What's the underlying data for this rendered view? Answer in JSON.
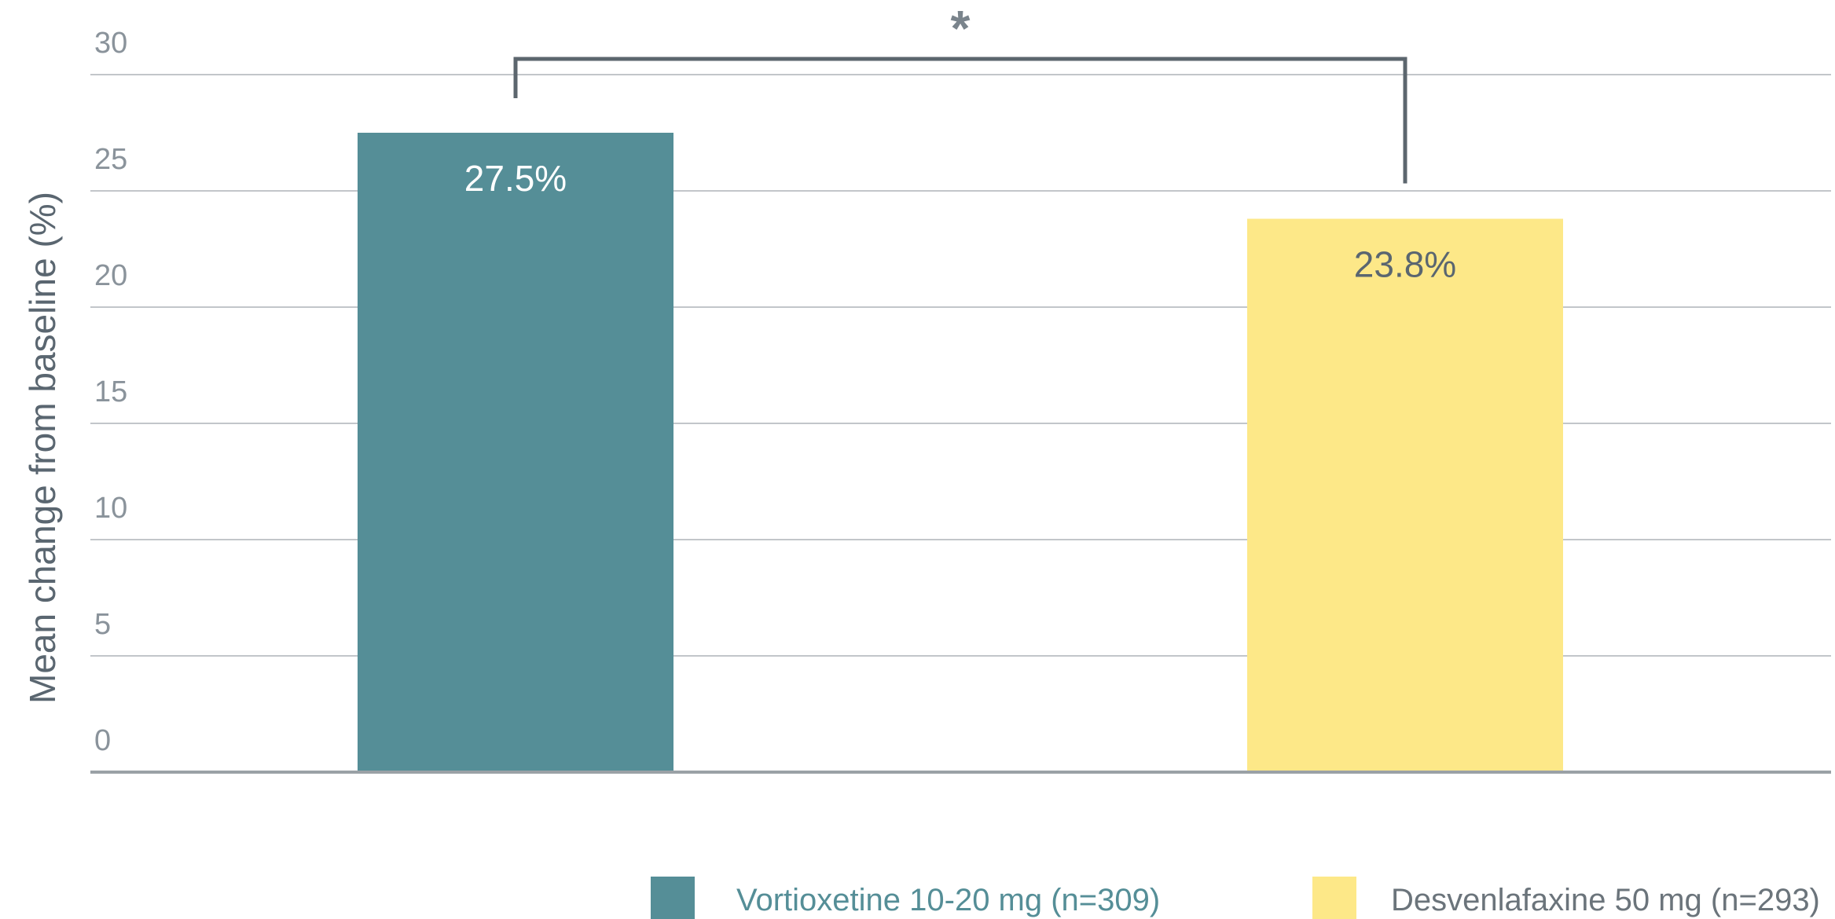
{
  "chart_data": {
    "type": "bar",
    "title": "",
    "xlabel": "",
    "ylabel": "Mean change from baseline (%)",
    "ylim": [
      0,
      30
    ],
    "yticks": [
      "0",
      "5",
      "10",
      "15",
      "20",
      "25",
      "30"
    ],
    "grid": true,
    "legend_position": "bottom",
    "categories": [
      "Vortioxetine 10-20 mg (n=309)",
      "Desvenlafaxine 50 mg (n=293)"
    ],
    "values": [
      27.5,
      23.8
    ],
    "data_labels": [
      "27.5%",
      "23.8%"
    ],
    "significance": {
      "between": [
        0,
        1
      ],
      "marker": "*"
    },
    "colors": {
      "bars": [
        "#558e97",
        "#fde888"
      ],
      "label_text": [
        "#ffffff",
        "#5a6670"
      ],
      "legend_text": [
        "#558e97",
        "#6b747b"
      ],
      "grid": "#c2c6ca",
      "axis": "#9aa1a6",
      "bracket": "#5c666e"
    },
    "legend": [
      {
        "label": "Vortioxetine 10-20 mg (n=309)"
      },
      {
        "label": "Desvenlafaxine 50 mg (n=293)"
      }
    ]
  }
}
